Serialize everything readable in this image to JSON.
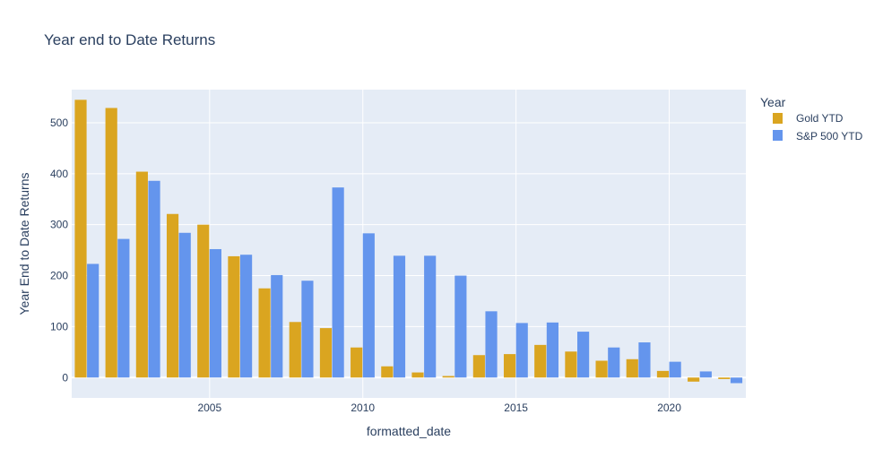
{
  "chart_data": {
    "type": "bar",
    "title": "Year end to Date Returns",
    "xlabel": "formatted_date",
    "ylabel": "Year End to Date Returns",
    "x": [
      2001,
      2002,
      2003,
      2004,
      2005,
      2006,
      2007,
      2008,
      2009,
      2010,
      2011,
      2012,
      2013,
      2014,
      2015,
      2016,
      2017,
      2018,
      2019,
      2020,
      2021,
      2022
    ],
    "xlim": [
      2000.5,
      2022.5
    ],
    "ylim": [
      -40,
      565
    ],
    "xticks": [
      2005,
      2010,
      2015,
      2020
    ],
    "yticks": [
      0,
      100,
      200,
      300,
      400,
      500
    ],
    "grid": true,
    "legend": {
      "title": "Year",
      "placement": "top-right"
    },
    "series": [
      {
        "name": "Gold YTD",
        "color": "#DAA520",
        "values": [
          545,
          529,
          404,
          321,
          300,
          238,
          175,
          109,
          97,
          59,
          22,
          10,
          3,
          44,
          46,
          64,
          51,
          33,
          36,
          13,
          -8,
          -3
        ]
      },
      {
        "name": "S&P 500 YTD",
        "color": "#6495ED",
        "values": [
          223,
          272,
          386,
          284,
          252,
          241,
          201,
          190,
          373,
          283,
          239,
          239,
          200,
          130,
          107,
          108,
          90,
          59,
          69,
          31,
          12,
          -11
        ]
      }
    ],
    "colors": {
      "plot_bg": "#E5ECF6",
      "grid": "#ffffff",
      "text": "#2a3f5f"
    }
  }
}
